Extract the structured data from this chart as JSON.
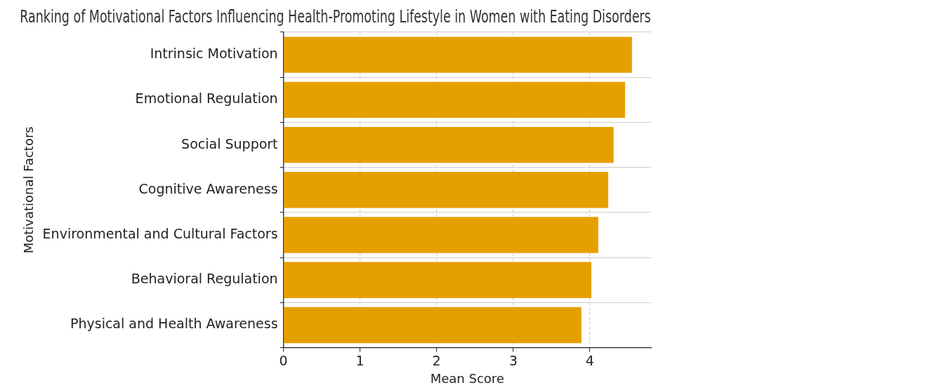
{
  "chart_data": {
    "type": "bar",
    "orientation": "horizontal",
    "title": "Ranking of Motivational Factors Influencing Health-Promoting Lifestyle in Women with Eating Disorders",
    "xlabel": "Mean Score",
    "ylabel": "Motivational Factors",
    "categories": [
      "Intrinsic Motivation",
      "Emotional Regulation",
      "Social Support",
      "Cognitive Awareness",
      "Environmental and Cultural Factors",
      "Behavioral Regulation",
      "Physical and Health Awareness"
    ],
    "values": [
      4.55,
      4.46,
      4.31,
      4.24,
      4.11,
      4.02,
      3.89
    ],
    "color": "#e5a000",
    "xlim": [
      0,
      4.8
    ],
    "xticks": [
      0,
      1,
      2,
      3,
      4
    ],
    "grid": true,
    "legend": false
  }
}
